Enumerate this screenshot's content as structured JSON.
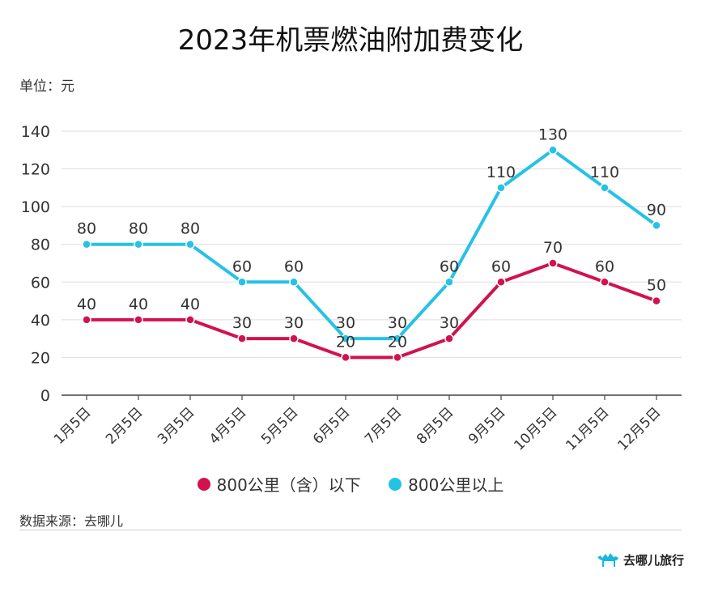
{
  "title": "2023年机票燃油附加费变化",
  "unit_label": "单位：元",
  "source": "数据来源：去哪儿",
  "logo": {
    "text": "去哪儿旅行",
    "icon": "camel-icon"
  },
  "colors": {
    "series1": "#D1124F",
    "series2": "#25C2E6",
    "grid": "#DDDDDD",
    "axis": "#333333"
  },
  "chart_data": {
    "type": "line",
    "categories": [
      "1月5日",
      "2月5日",
      "3月5日",
      "4月5日",
      "5月5日",
      "6月5日",
      "7月5日",
      "8月5日",
      "9月5日",
      "10月5日",
      "11月5日",
      "12月5日"
    ],
    "series": [
      {
        "name": "800公里（含）以下",
        "color": "#D1124F",
        "values": [
          40,
          40,
          40,
          30,
          30,
          20,
          20,
          30,
          60,
          70,
          60,
          50
        ]
      },
      {
        "name": "800公里以上",
        "color": "#25C2E6",
        "values": [
          80,
          80,
          80,
          60,
          60,
          30,
          30,
          60,
          110,
          130,
          110,
          90
        ]
      }
    ],
    "ylim": [
      0,
      140
    ],
    "yticks": [
      0,
      20,
      40,
      60,
      80,
      100,
      120,
      140
    ],
    "grid": true,
    "legend": "bottom",
    "data_labels": true
  }
}
